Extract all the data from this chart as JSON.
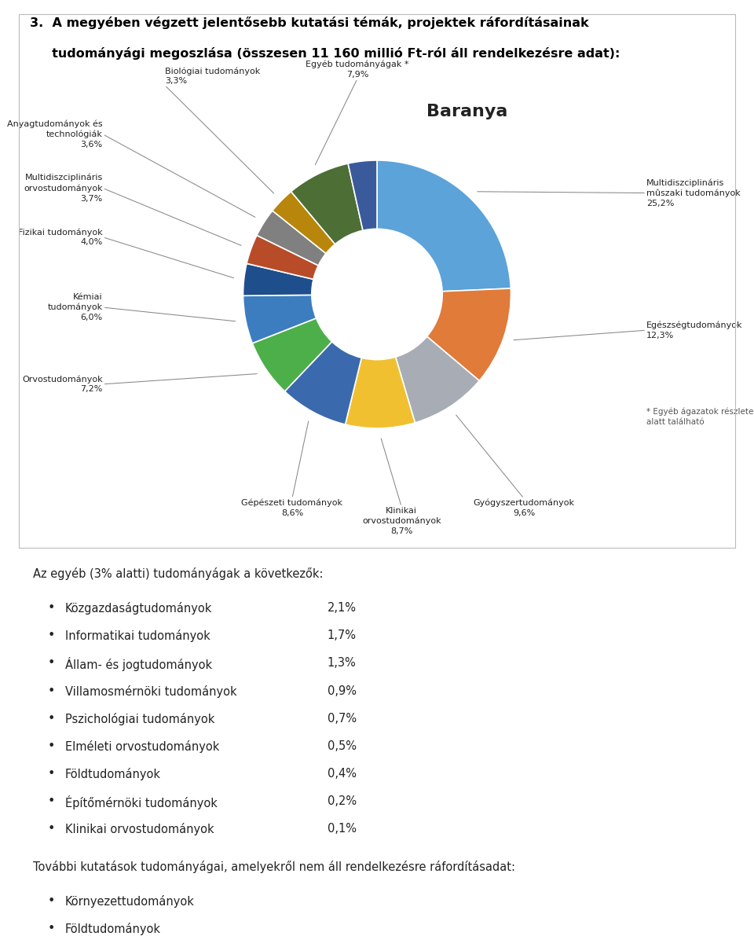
{
  "slice_data": [
    {
      "label": "Multidiszciplináris\nmûszaki tudományok\n25,2%",
      "value": 25.2,
      "color": "#5BA3D9"
    },
    {
      "label": "Egészségtudományok\n12,3%",
      "value": 12.3,
      "color": "#E07B39"
    },
    {
      "label": "Gyógyszertudományok\n9,6%",
      "value": 9.6,
      "color": "#A8ACB4"
    },
    {
      "label": "Klinikai\norvostudományok\n8,7%",
      "value": 8.7,
      "color": "#F0C030"
    },
    {
      "label": "Gépészeti tudományok\n8,6%",
      "value": 8.6,
      "color": "#3A6AAD"
    },
    {
      "label": "Orvostudományok\n7,2%",
      "value": 7.2,
      "color": "#4DAF4A"
    },
    {
      "label": "Kémiai\ntudományok\n6,0%",
      "value": 6.0,
      "color": "#3C7DBF"
    },
    {
      "label": "Fizikai tudományok\n4,0%",
      "value": 4.0,
      "color": "#1F4E8C"
    },
    {
      "label": "Multidiszciplináris\norvostudományok\n3,7%",
      "value": 3.7,
      "color": "#B84C28"
    },
    {
      "label": "Anyagtudományok és\ntechnológiák\n3,6%",
      "value": 3.6,
      "color": "#808080"
    },
    {
      "label": "Biológiai tudományok\n3,3%",
      "value": 3.3,
      "color": "#B8860B"
    },
    {
      "label": "Egyéb tudományágak *\n7,9%",
      "value": 7.9,
      "color": "#4D6E35"
    },
    {
      "label": "",
      "value": 3.6,
      "color": "#3A5A9C"
    }
  ],
  "title_bold": "3.  A megyében végzett jelentősebb kutatási témák, projektek ráfordításainak\n    tudományági megoszlása (összesen 11 160 millió Ft-ról áll rendelkezésre adat):",
  "chart_title": "Baranya",
  "footnote": "* Egyéb ágazatok részletezése az ábra\nalatt található",
  "bullet_header": "Az egyéb (3% alatti) tudományágak a következők:",
  "bullets": [
    [
      "Közgazdaságtudományok",
      "2,1%"
    ],
    [
      "Informatikai tudományok",
      "1,7%"
    ],
    [
      "Állam- és jogtudományok",
      "1,3%"
    ],
    [
      "Villamosmérnöki tudományok",
      "0,9%"
    ],
    [
      "Pszichológiai tudományok",
      "0,7%"
    ],
    [
      "Elméleti orvostudományok",
      "0,5%"
    ],
    [
      "Földtudományok",
      "0,4%"
    ],
    [
      "Építőmérnöki tudományok",
      "0,2%"
    ],
    [
      "Klinikai orvostudományok",
      "0,1%"
    ]
  ],
  "further_header": "További kutatások tudományágai, amelyekről nem áll rendelkezésre ráfordításadat:",
  "further_bullets": [
    "Környezettudományok",
    "Földtudományok"
  ],
  "bg_color": "#FFFFFF",
  "box_color": "#DDDDDD",
  "outer_r": 0.82,
  "inner_r": 0.4
}
